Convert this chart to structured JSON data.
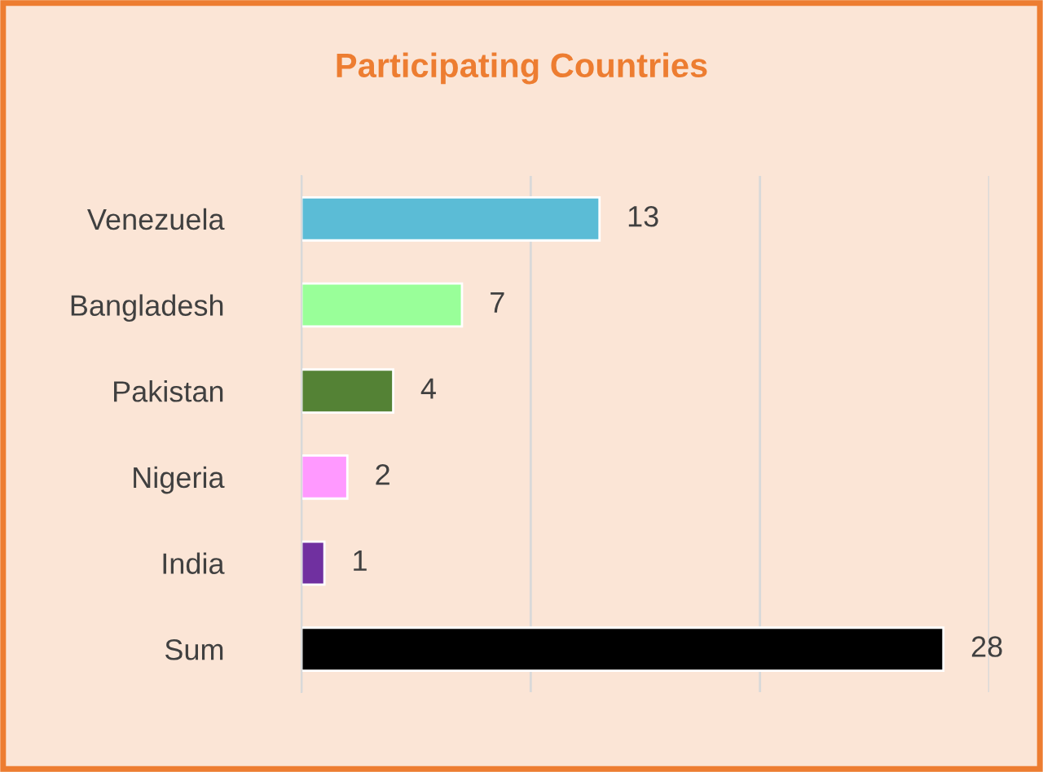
{
  "chart_data": {
    "type": "bar",
    "orientation": "horizontal",
    "title": "Participating Countries",
    "categories": [
      "Venezuela",
      "Bangladesh",
      "Pakistan",
      "Nigeria",
      "India",
      "Sum"
    ],
    "values": [
      13,
      7,
      4,
      2,
      1,
      28
    ],
    "colors": [
      "#5bbcd6",
      "#99ff99",
      "#548235",
      "#ff99ff",
      "#7030a0",
      "#000000"
    ],
    "xlim": [
      0,
      30
    ],
    "xticks": [
      {
        "value": 0,
        "label": null
      },
      {
        "value": 10,
        "label": null
      },
      {
        "value": 20,
        "label": null
      },
      {
        "value": 30,
        "label": null
      }
    ],
    "tick_labels": "y",
    "grid": "x",
    "data_labels": true,
    "legend": false
  }
}
